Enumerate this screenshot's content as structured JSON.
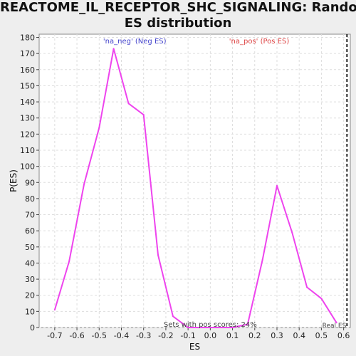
{
  "title_lines": [
    "REACTOME_IL_RECEPTOR_SHC_SIGNALING: Random",
    "ES distribution"
  ],
  "chart_data": {
    "type": "line",
    "title": "REACTOME_IL_RECEPTOR_SHC_SIGNALING: Random ES distribution",
    "xlabel": "ES",
    "ylabel": "P(ES)",
    "xlim": [
      -0.77,
      0.63
    ],
    "ylim": [
      0,
      182
    ],
    "xticks": [
      -0.7,
      -0.6,
      -0.5,
      -0.4,
      -0.3,
      -0.2,
      -0.1,
      0.0,
      0.1,
      0.2,
      0.3,
      0.4,
      0.5,
      0.6
    ],
    "xtick_labels": [
      "-0.7",
      "-0.6",
      "-0.5",
      "-0.4",
      "-0.3",
      "-0.2",
      "-0.1",
      "0.0",
      "0.1",
      "0.2",
      "0.3",
      "0.4",
      "0.5",
      "0.6"
    ],
    "yticks": [
      0,
      10,
      20,
      30,
      40,
      50,
      60,
      70,
      80,
      90,
      100,
      110,
      120,
      130,
      140,
      150,
      160,
      170,
      180
    ],
    "grid": true,
    "series": [
      {
        "color": "#ee44ee",
        "x": [
          -0.7,
          -0.635,
          -0.568,
          -0.5,
          -0.435,
          -0.368,
          -0.3,
          -0.235,
          -0.168,
          -0.1,
          -0.035,
          0.03,
          0.1,
          0.168,
          0.235,
          0.3,
          0.368,
          0.435,
          0.5,
          0.568
        ],
        "y": [
          11,
          41,
          89,
          124,
          173,
          139,
          132,
          45,
          7,
          0,
          0,
          0,
          0,
          2,
          42,
          88,
          59,
          25,
          18,
          3
        ]
      }
    ],
    "real_es_x": 0.615,
    "annotations": {
      "neg": {
        "text": "'na_neg' (Neg ES)",
        "color": "#4444cc"
      },
      "pos": {
        "text": "'na_pos' (Pos ES)",
        "color": "#dd4444"
      },
      "pos_scores": "Sets with pos scores: 24%",
      "real_es": "Real ES"
    }
  }
}
